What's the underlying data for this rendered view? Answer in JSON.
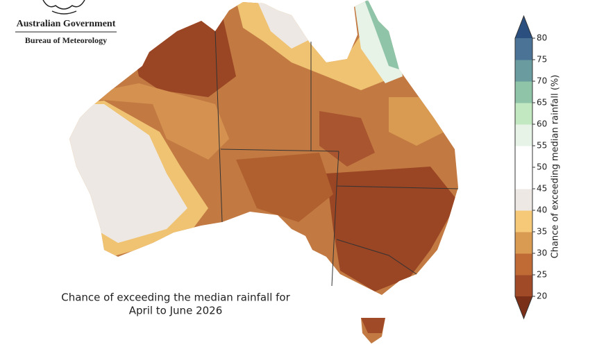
{
  "header": {
    "agency": "Australian Government",
    "bureau": "Bureau of Meteorology"
  },
  "caption": {
    "line1": "Chance of exceeding the median rainfall for",
    "line2": "April to June 2026"
  },
  "colorbar": {
    "label": "Chance of exceeding median rainfall (%)",
    "min": 20,
    "max": 80,
    "ticks": [
      20,
      25,
      30,
      35,
      40,
      45,
      50,
      55,
      60,
      65,
      70,
      75,
      80
    ],
    "colors": [
      "#a04a28",
      "#c06a36",
      "#d99a52",
      "#f5c978",
      "#ede8e4",
      "#ffffff",
      "#ffffff",
      "#e8f3e8",
      "#c2e8c2",
      "#8fc4a8",
      "#6a9b9e",
      "#4a7396"
    ],
    "extend_colors": [
      "#7a3018",
      "#2b4f7e"
    ]
  }
}
